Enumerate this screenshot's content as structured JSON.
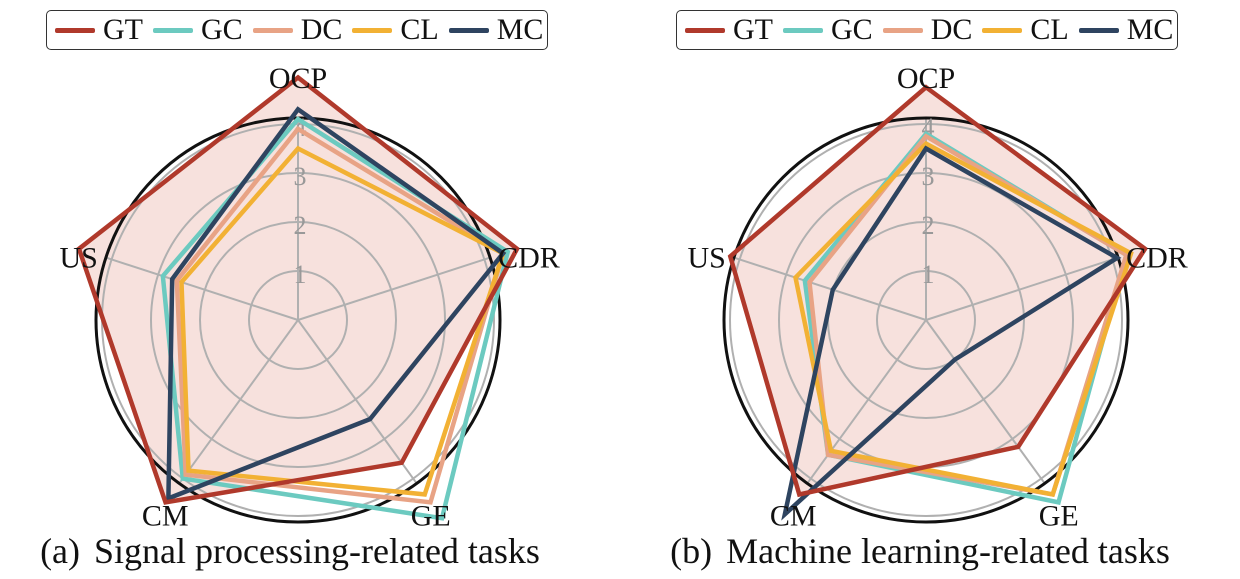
{
  "legend": [
    {
      "name": "GT",
      "color": "#b0392b"
    },
    {
      "name": "GC",
      "color": "#6ccac0"
    },
    {
      "name": "DC",
      "color": "#e8a385"
    },
    {
      "name": "CL",
      "color": "#f2b134"
    },
    {
      "name": "MC",
      "color": "#2e4460"
    }
  ],
  "chart_data": [
    {
      "type": "radar",
      "caption_tag": "(a)",
      "caption": "Signal processing-related tasks",
      "axes": [
        "OCP",
        "CDR",
        "GE",
        "CM",
        "US"
      ],
      "ticks": [
        "1",
        "2",
        "3",
        "4"
      ],
      "rmax": 5,
      "fill_series": "GT",
      "fill_color": "#f7e1dd",
      "series": [
        {
          "name": "GT",
          "values": [
            4.95,
            4.7,
            3.6,
            4.6,
            4.7
          ]
        },
        {
          "name": "GC",
          "values": [
            4.1,
            4.5,
            5.0,
            4.0,
            2.9
          ]
        },
        {
          "name": "DC",
          "values": [
            3.9,
            4.4,
            4.6,
            3.9,
            2.6
          ]
        },
        {
          "name": "CL",
          "values": [
            3.5,
            4.4,
            4.4,
            3.8,
            2.5
          ]
        },
        {
          "name": "MC",
          "values": [
            4.3,
            4.4,
            2.5,
            4.5,
            2.7
          ]
        }
      ]
    },
    {
      "type": "radar",
      "caption_tag": "(b)",
      "caption": "Machine learning-related tasks",
      "axes": [
        "OCP",
        "CDR",
        "GE",
        "CM",
        "US"
      ],
      "ticks": [
        "1",
        "2",
        "3",
        "4"
      ],
      "rmax": 5,
      "fill_series": "GT",
      "fill_color": "#f7e1dd",
      "series": [
        {
          "name": "GT",
          "values": [
            4.75,
            4.7,
            3.2,
            4.4,
            4.2
          ]
        },
        {
          "name": "GC",
          "values": [
            3.8,
            4.3,
            4.6,
            3.4,
            2.6
          ]
        },
        {
          "name": "DC",
          "values": [
            3.75,
            4.3,
            4.4,
            3.4,
            2.5
          ]
        },
        {
          "name": "CL",
          "values": [
            3.6,
            4.4,
            4.4,
            3.3,
            2.8
          ]
        },
        {
          "name": "MC",
          "values": [
            3.5,
            4.1,
            1.0,
            4.9,
            2.0
          ]
        }
      ]
    }
  ]
}
